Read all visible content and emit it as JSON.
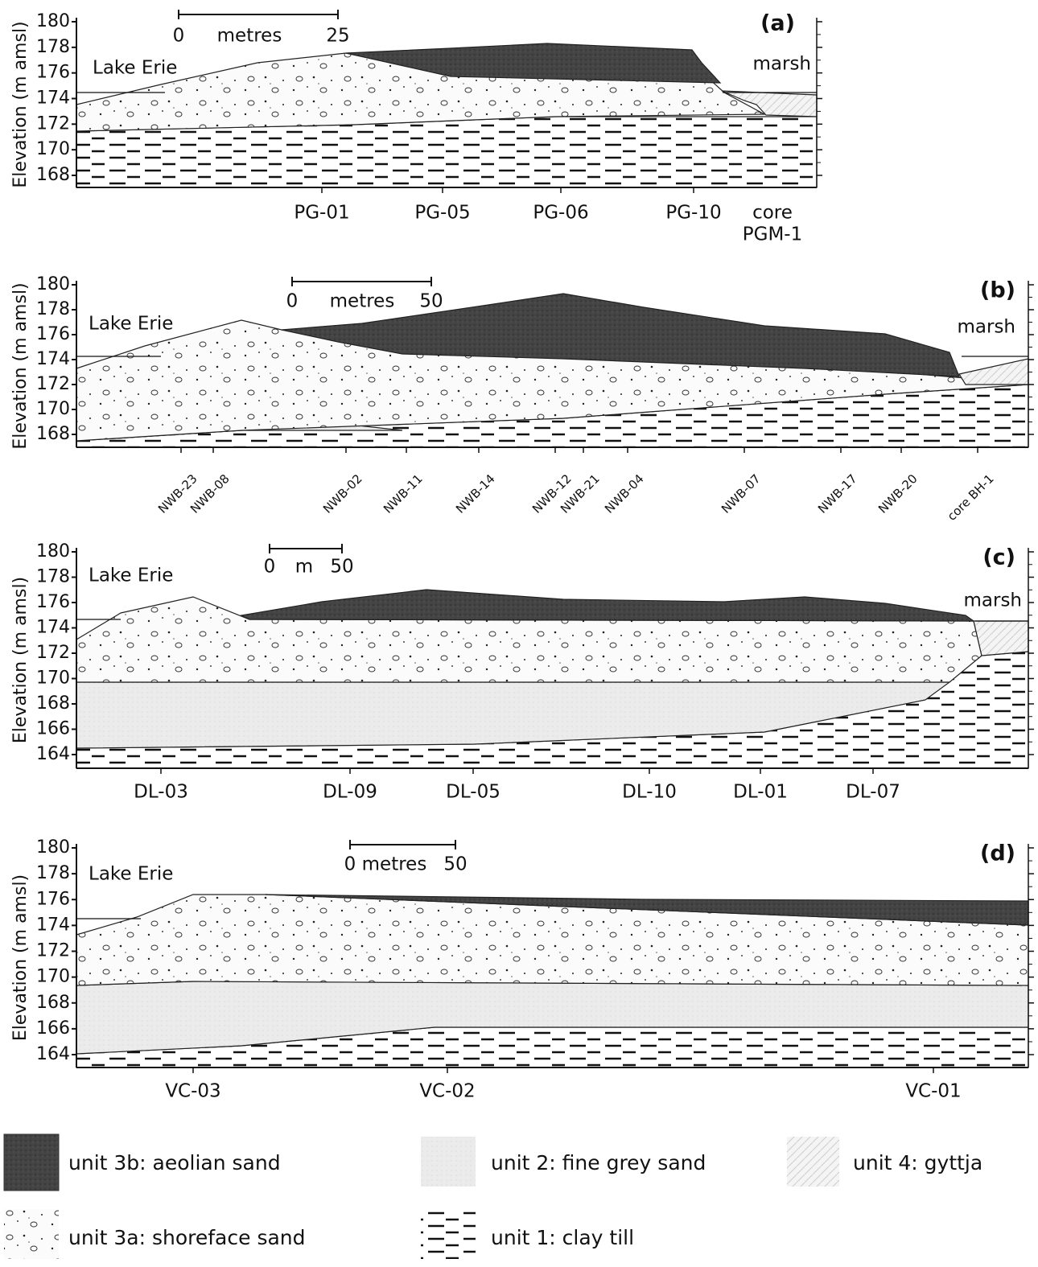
{
  "panels": [
    {
      "label": "(a)",
      "y_axis_title": "Elevation (m amsl)",
      "yticks": [
        180,
        178,
        176,
        174,
        172,
        170,
        168
      ],
      "scale_bar": [
        "0",
        "metres",
        "25"
      ],
      "places": [
        "Lake Erie",
        "marsh"
      ],
      "sites": [
        "PG-01",
        "PG-05",
        "PG-06",
        "PG-10"
      ],
      "core_label": [
        "core",
        "PGM-1"
      ]
    },
    {
      "label": "(b)",
      "y_axis_title": "Elevation (m amsl)",
      "yticks": [
        180,
        178,
        176,
        174,
        172,
        170,
        168
      ],
      "scale_bar": [
        "0",
        "metres",
        "50"
      ],
      "places": [
        "Lake Erie",
        "marsh"
      ],
      "sites": [
        "NWB-23",
        "NWB-08",
        "NWB-02",
        "NWB-11",
        "NWB-14",
        "NWB-12",
        "NWB-21",
        "NWB-04",
        "NWB-07",
        "NWB-17",
        "NWB-20",
        "core BH-1"
      ]
    },
    {
      "label": "(c)",
      "y_axis_title": "Elevation (m amsl)",
      "yticks": [
        180,
        178,
        176,
        174,
        172,
        170,
        168,
        166,
        164
      ],
      "scale_bar": [
        "0",
        "m",
        "50"
      ],
      "places": [
        "Lake Erie",
        "marsh"
      ],
      "sites": [
        "DL-03",
        "DL-09",
        "DL-05",
        "DL-10",
        "DL-01",
        "DL-07"
      ]
    },
    {
      "label": "(d)",
      "y_axis_title": "Elevation (m amsl)",
      "yticks": [
        180,
        178,
        176,
        174,
        172,
        170,
        168,
        166,
        164
      ],
      "scale_bar": [
        "0",
        "metres",
        "50"
      ],
      "places": [
        "Lake Erie"
      ],
      "sites": [
        "VC-03",
        "VC-02",
        "VC-01"
      ]
    }
  ],
  "legend": [
    "unit 3b: aeolian sand",
    "unit 2: fine grey sand",
    "unit 4: gyttja",
    "unit 3a: shoreface sand",
    "unit 1: clay till"
  ]
}
